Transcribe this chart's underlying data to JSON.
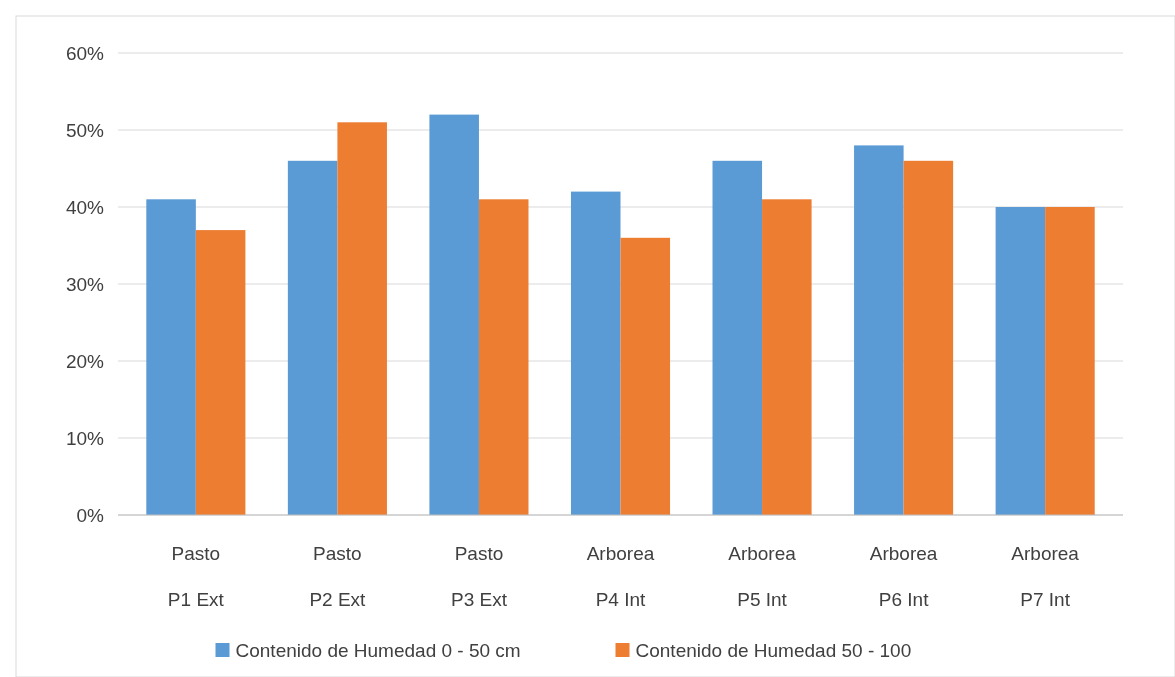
{
  "chart_data": {
    "type": "bar",
    "categories": [
      "Pasto\nP1 Ext",
      "Pasto\nP2 Ext",
      "Pasto\nP3 Ext",
      "Arborea\nP4 Int",
      "Arborea\nP5 Int",
      "Arborea\nP6 Int",
      "Arborea\nP7 Int"
    ],
    "series": [
      {
        "name": "Contenido de Humedad 0 - 50 cm",
        "color": "#5b9bd5",
        "values": [
          0.41,
          0.46,
          0.52,
          0.42,
          0.46,
          0.48,
          0.4
        ]
      },
      {
        "name": "Contenido de Humedad 50 - 100",
        "color": "#ed7d31",
        "values": [
          0.37,
          0.51,
          0.41,
          0.36,
          0.41,
          0.46,
          0.4
        ]
      }
    ],
    "ylim": [
      0,
      0.6
    ],
    "yticks": [
      {
        "value": 0,
        "label": "0%"
      },
      {
        "value": 0.1,
        "label": "10%"
      },
      {
        "value": 0.2,
        "label": "20%"
      },
      {
        "value": 0.3,
        "label": "30%"
      },
      {
        "value": 0.4,
        "label": "40%"
      },
      {
        "value": 0.5,
        "label": "50%"
      },
      {
        "value": 0.6,
        "label": "60%"
      }
    ],
    "grid": "y",
    "legend": "bottom"
  }
}
